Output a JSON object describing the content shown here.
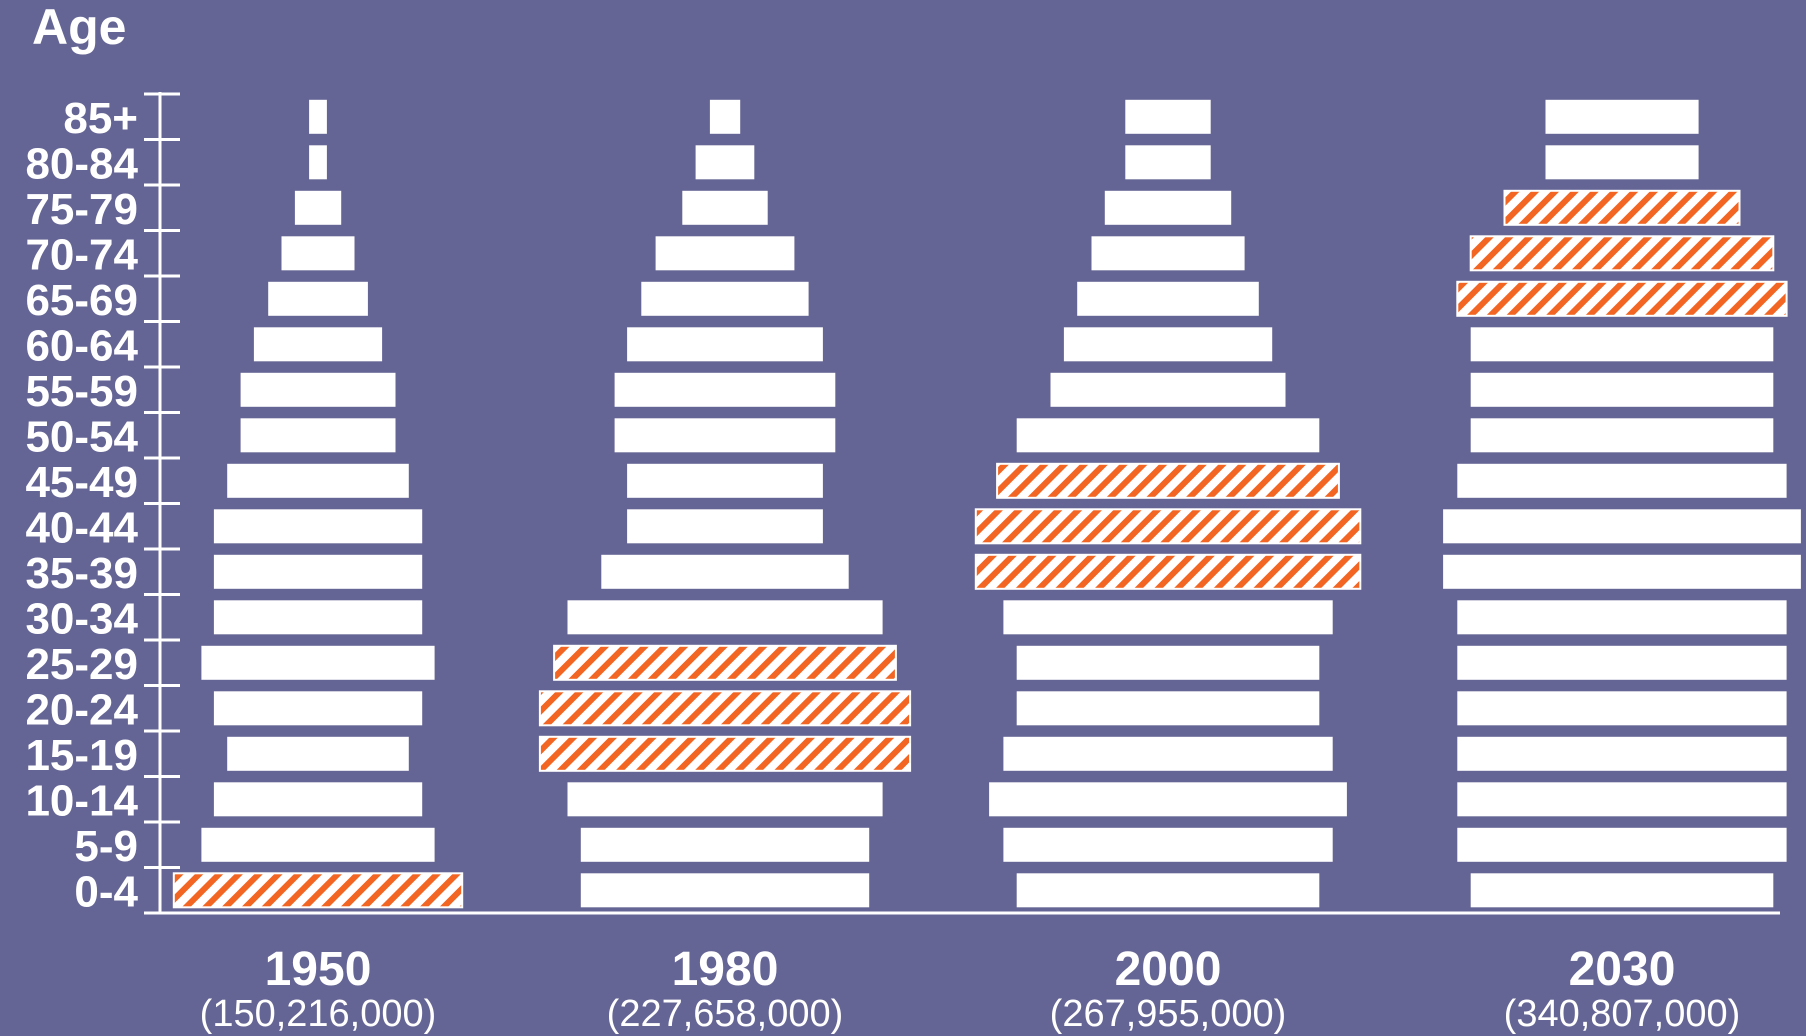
{
  "chart_data": {
    "type": "bar",
    "ylabel": "Age",
    "categories": [
      "0-4",
      "5-9",
      "10-14",
      "15-19",
      "20-24",
      "25-29",
      "30-34",
      "35-39",
      "40-44",
      "45-49",
      "50-54",
      "55-59",
      "60-64",
      "65-69",
      "70-74",
      "75-79",
      "80-84",
      "85+"
    ],
    "highlight_color": "#f26522",
    "bar_color": "#ffffff",
    "background_color": "#656595",
    "panels": [
      {
        "year": "1950",
        "population": "(150,216,000)",
        "values": [
          16.2,
          13.1,
          11.7,
          10.2,
          11.7,
          13.1,
          11.7,
          11.7,
          11.7,
          10.2,
          8.7,
          8.7,
          7.2,
          5.6,
          4.1,
          2.6,
          1.0,
          1.0
        ],
        "highlight": [
          0
        ]
      },
      {
        "year": "1980",
        "population": "(227,658,000)",
        "values": [
          16.2,
          16.2,
          17.7,
          20.8,
          20.8,
          19.2,
          17.7,
          13.9,
          11.0,
          11.0,
          12.4,
          12.4,
          11.0,
          9.4,
          7.8,
          4.8,
          3.3,
          1.7
        ],
        "highlight": [
          3,
          4,
          5
        ]
      },
      {
        "year": "2000",
        "population": "(267,955,000)",
        "values": [
          17.0,
          18.5,
          20.1,
          18.5,
          17.0,
          17.0,
          18.5,
          21.6,
          21.6,
          19.2,
          17.0,
          13.2,
          11.7,
          10.2,
          8.6,
          7.1,
          4.8,
          4.8
        ],
        "highlight": [
          7,
          8,
          9
        ]
      },
      {
        "year": "2030",
        "population": "(340,807,000)",
        "values": [
          17.0,
          18.5,
          18.5,
          18.5,
          18.5,
          18.5,
          18.5,
          20.1,
          20.1,
          18.5,
          17.0,
          17.0,
          17.0,
          18.5,
          17.0,
          13.2,
          8.6,
          8.6
        ],
        "highlight": [
          13,
          14,
          15
        ]
      }
    ]
  }
}
